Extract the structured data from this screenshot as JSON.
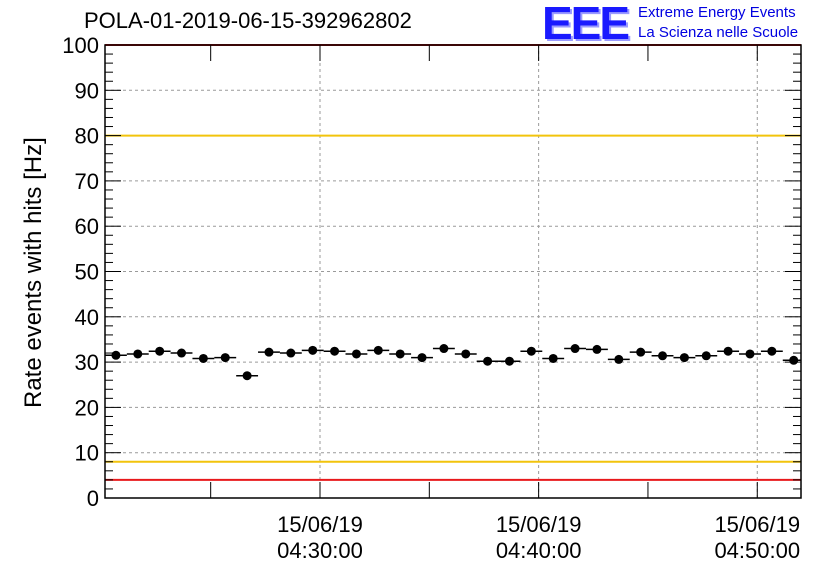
{
  "title": "POLA-01-2019-06-15-392962802",
  "logo": {
    "mark": "EEE",
    "line1": "Extreme Energy Events",
    "line2": "La Scienza nelle Scuole"
  },
  "chart_data": {
    "type": "scatter",
    "ylabel": "Rate events with hits [Hz]",
    "xlabel": "",
    "ylim": [
      0,
      100
    ],
    "yticks": [
      0,
      10,
      20,
      30,
      40,
      50,
      60,
      70,
      80,
      90,
      100
    ],
    "xlim": [
      "2019-06-15 04:20:10",
      "2019-06-15 04:52:00"
    ],
    "xticks": [
      {
        "date": "15/06/19",
        "time": "04:30:00",
        "x": "2019-06-15 04:30:00"
      },
      {
        "date": "15/06/19",
        "time": "04:40:00",
        "x": "2019-06-15 04:40:00"
      },
      {
        "date": "15/06/19",
        "time": "04:50:00",
        "x": "2019-06-15 04:50:00"
      }
    ],
    "grid": true,
    "bin_width_seconds": 60,
    "reference_lines": [
      {
        "y": 100,
        "color": "#e8191c"
      },
      {
        "y": 80,
        "color": "#f2c40c"
      },
      {
        "y": 8,
        "color": "#f2c40c"
      },
      {
        "y": 4,
        "color": "#e8191c"
      }
    ],
    "series": [
      {
        "color": "#000000",
        "x": [
          "2019-06-15 04:20:40",
          "2019-06-15 04:21:40",
          "2019-06-15 04:22:40",
          "2019-06-15 04:23:40",
          "2019-06-15 04:24:40",
          "2019-06-15 04:25:40",
          "2019-06-15 04:26:40",
          "2019-06-15 04:27:40",
          "2019-06-15 04:28:40",
          "2019-06-15 04:29:40",
          "2019-06-15 04:30:40",
          "2019-06-15 04:31:40",
          "2019-06-15 04:32:40",
          "2019-06-15 04:33:40",
          "2019-06-15 04:34:40",
          "2019-06-15 04:35:40",
          "2019-06-15 04:36:40",
          "2019-06-15 04:37:40",
          "2019-06-15 04:38:40",
          "2019-06-15 04:39:40",
          "2019-06-15 04:40:40",
          "2019-06-15 04:41:40",
          "2019-06-15 04:42:40",
          "2019-06-15 04:43:40",
          "2019-06-15 04:44:40",
          "2019-06-15 04:45:40",
          "2019-06-15 04:46:40",
          "2019-06-15 04:47:40",
          "2019-06-15 04:48:40",
          "2019-06-15 04:49:40",
          "2019-06-15 04:50:40",
          "2019-06-15 04:51:40"
        ],
        "y": [
          31.5,
          31.8,
          32.4,
          32.0,
          30.8,
          31.0,
          27.0,
          32.2,
          32.0,
          32.6,
          32.4,
          31.8,
          32.6,
          31.8,
          31.0,
          33.0,
          31.8,
          30.2,
          30.2,
          32.4,
          30.8,
          33.0,
          32.8,
          30.6,
          32.2,
          31.4,
          31.0,
          31.4,
          32.4,
          31.8,
          32.4,
          30.4
        ]
      }
    ]
  }
}
